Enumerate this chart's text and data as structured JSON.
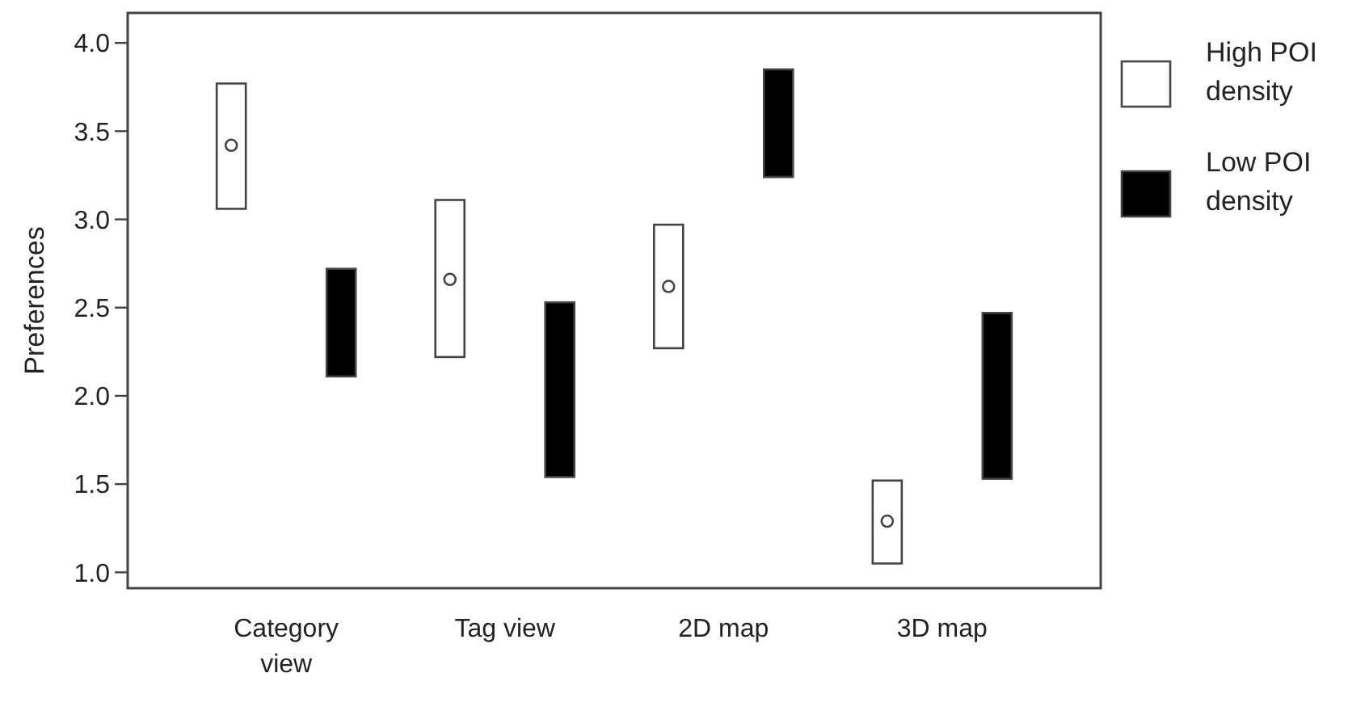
{
  "chart_data": {
    "type": "bar",
    "ylabel": "Preferences",
    "categories": [
      "Category view",
      "Tag view",
      "2D map",
      "3D map"
    ],
    "series": [
      {
        "name": "High POI density",
        "color": "#ffffff",
        "base": [
          3.06,
          2.22,
          2.27,
          1.05
        ],
        "values": [
          0.71,
          0.89,
          0.7,
          0.47
        ]
      },
      {
        "name": "Low POI density",
        "color": "#000000",
        "base": [
          2.11,
          1.54,
          3.24,
          1.53
        ],
        "values": [
          0.61,
          0.99,
          0.61,
          0.94
        ]
      },
      {
        "type": "scatter",
        "color": "#ffffff",
        "values": [
          3.42,
          2.66,
          2.62,
          1.29
        ],
        "marker": "circle"
      }
    ],
    "ylim": [
      0.91,
      4.17
    ],
    "yticks": [
      {
        "value": 1,
        "label": "1.0"
      },
      {
        "value": 1.5,
        "label": "1.5"
      },
      {
        "value": 2,
        "label": "2.0"
      },
      {
        "value": 2.5,
        "label": "2.5"
      },
      {
        "value": 3,
        "label": "3.0"
      },
      {
        "value": 3.5,
        "label": "3.5"
      },
      {
        "value": 4,
        "label": "4.0"
      }
    ],
    "grid": false,
    "legend": "right"
  }
}
